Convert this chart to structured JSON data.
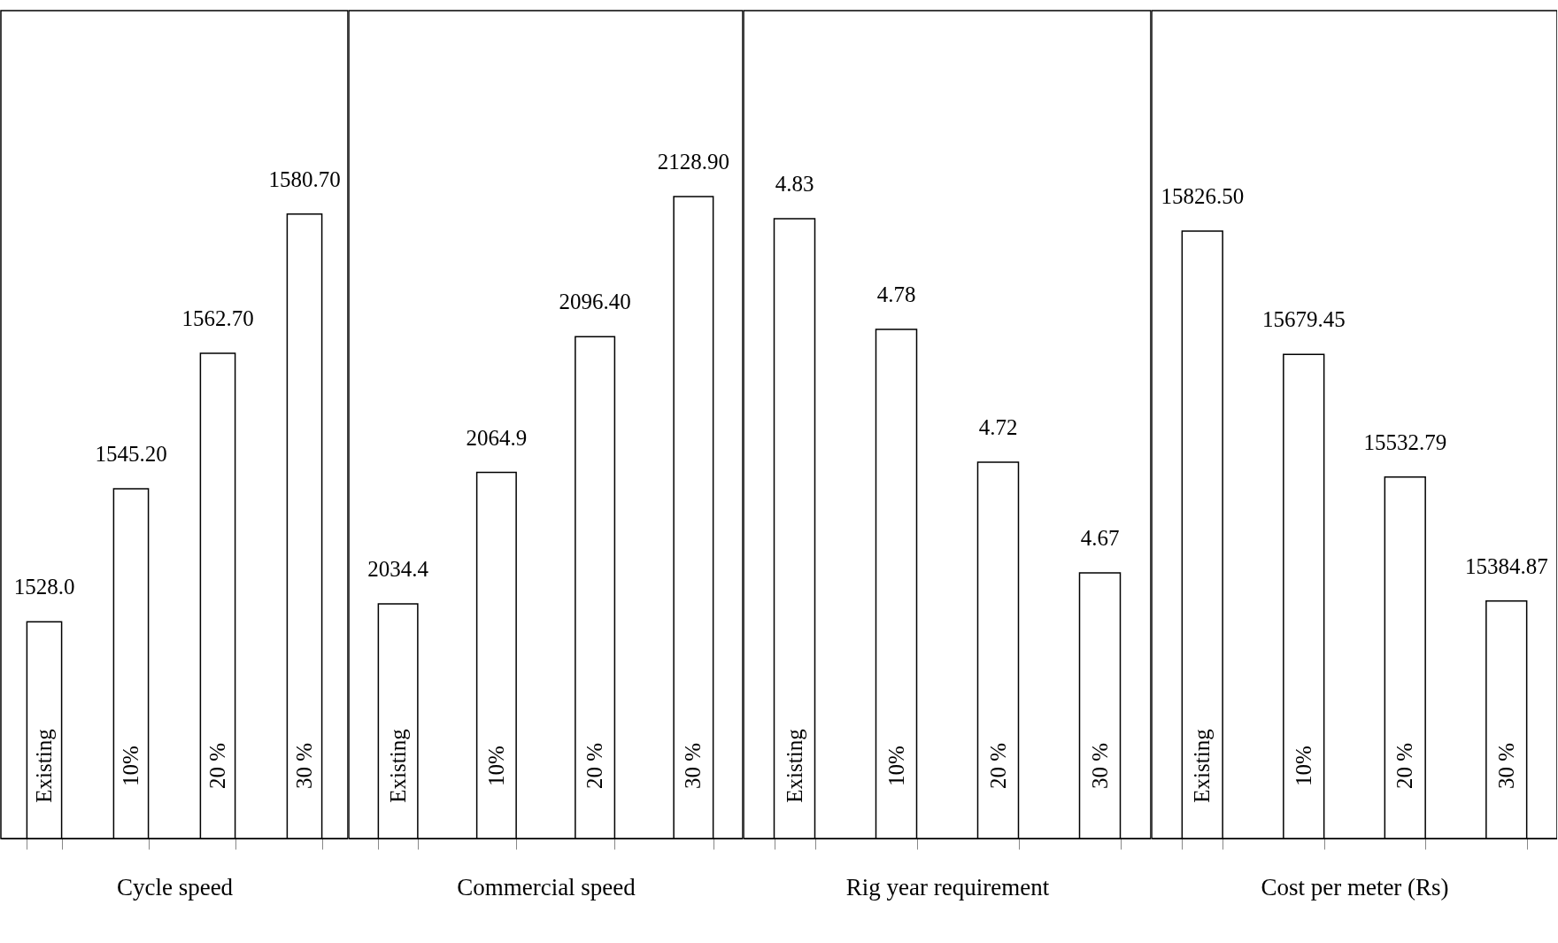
{
  "chart_data": [
    {
      "type": "bar",
      "xlabel": "Cycle speed",
      "categories": [
        "Existing",
        "10%",
        "20 %",
        "30 %"
      ],
      "values": [
        1528.0,
        1545.2,
        1562.7,
        1580.7
      ],
      "value_labels": [
        "1528.0",
        "1545.20",
        "1562.70",
        "1580.70"
      ],
      "color": "#ffffff",
      "ylim": [
        1500,
        1607
      ]
    },
    {
      "type": "bar",
      "xlabel": "Commercial speed",
      "categories": [
        "Existing",
        "10%",
        "20 %",
        "30 %"
      ],
      "values": [
        2034.4,
        2064.9,
        2096.4,
        2128.9
      ],
      "value_labels": [
        "2034.4",
        "2064.9",
        "2096.40",
        "2128.90"
      ],
      "color": "#ffffff",
      "ylim": [
        1980,
        2172
      ]
    },
    {
      "type": "bar",
      "xlabel": "Rig year requirement",
      "categories": [
        "Existing",
        "10%",
        "20 %",
        "30 %"
      ],
      "values": [
        4.83,
        4.78,
        4.72,
        4.67
      ],
      "value_labels": [
        "4.83",
        "4.78",
        "4.72",
        "4.67"
      ],
      "color": "#ffffff",
      "ylim": [
        4.55,
        4.924
      ]
    },
    {
      "type": "bar",
      "xlabel": "Cost per meter (Rs)",
      "categories": [
        "Existing",
        "10%",
        "20 %",
        "30 %"
      ],
      "values": [
        15826.5,
        15679.45,
        15532.79,
        15384.87
      ],
      "value_labels": [
        "15826.50",
        "15679.45",
        "15532.79",
        "15384.87"
      ],
      "color": "#ffffff",
      "ylim": [
        15101,
        16090
      ]
    }
  ]
}
